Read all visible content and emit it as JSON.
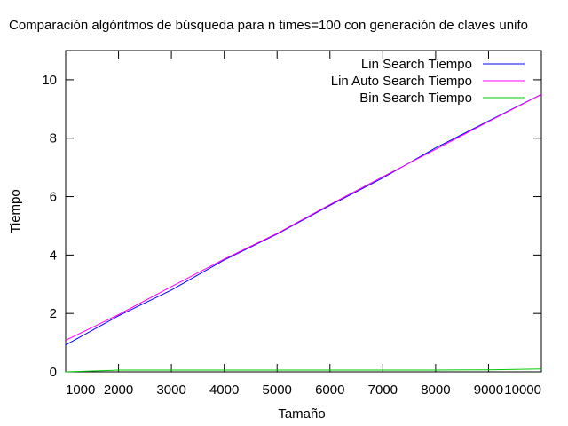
{
  "chart_data": {
    "type": "line",
    "title": "Comparación algóritmos de búsqueda para n times=100 con generación de claves unifo",
    "xlabel": "Tamaño",
    "ylabel": "Tiempo",
    "xlim": [
      1000,
      10000
    ],
    "ylim": [
      0,
      11
    ],
    "xticks": [
      1000,
      2000,
      3000,
      4000,
      5000,
      6000,
      7000,
      8000,
      9000,
      10000
    ],
    "yticks": [
      0,
      2,
      4,
      6,
      8,
      10
    ],
    "grid": false,
    "legend_position": "top-right",
    "x": [
      1000,
      2000,
      3000,
      4000,
      5000,
      6000,
      7000,
      8000,
      9000,
      10000
    ],
    "series": [
      {
        "name": "Lin Search Tiempo",
        "color": "#0000ff",
        "values": [
          0.92,
          1.92,
          2.8,
          3.83,
          4.72,
          5.7,
          6.64,
          7.67,
          8.59,
          9.5
        ]
      },
      {
        "name": "Lin Auto Search Tiempo",
        "color": "#ff00ff",
        "values": [
          1.08,
          1.96,
          2.92,
          3.86,
          4.74,
          5.73,
          6.68,
          7.62,
          8.57,
          9.5
        ]
      },
      {
        "name": "Bin Search Tiempo",
        "color": "#00cc00",
        "values": [
          0.0,
          0.06,
          0.06,
          0.06,
          0.06,
          0.06,
          0.06,
          0.06,
          0.07,
          0.1
        ]
      }
    ]
  }
}
